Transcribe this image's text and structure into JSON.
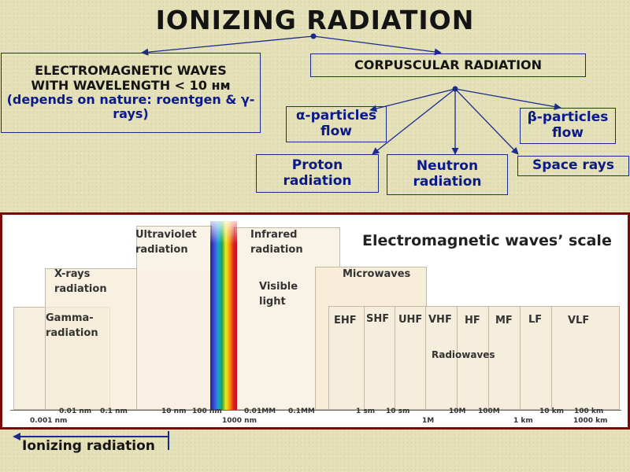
{
  "title": "IONIZING RADIATION",
  "electromagnetic": {
    "line1": "ELECTROMAGNETIC WAVES",
    "line2": "WITH WAVELENGTH < 10 нм",
    "line3": "(depends on nature: roentgen & γ-rays)"
  },
  "corpuscular": {
    "label": "CORPUSCULAR RADIATION",
    "alpha_line1": "α-particles",
    "alpha_line2": "flow",
    "beta_line1": "β-particles",
    "beta_line2": "flow",
    "proton_line1": "Proton",
    "proton_line2": "radiation",
    "neutron_line1": "Neutron",
    "neutron_line2": "radiation",
    "space": "Space rays"
  },
  "scale": {
    "title": "Electromagnetic waves’ scale",
    "gamma_1": "Gamma-",
    "gamma_2": "radiation",
    "xrays_1": "X-rays",
    "xrays_2": "radiation",
    "uv_1": "Ultraviolet",
    "uv_2": "radiation",
    "ir_1": "Infrared",
    "ir_2": "radiation",
    "visible_1": "Visible",
    "visible_2": "light",
    "microwaves": "Microwaves",
    "radiowaves": "Radiowaves",
    "bands": [
      "EHF",
      "SHF",
      "UHF",
      "VHF",
      "HF",
      "MF",
      "LF",
      "VLF"
    ],
    "ticks_top": [
      "0.01 nm",
      "0.1 nm",
      "10 nm",
      "100 nm",
      "0.01MM",
      "0.1MM",
      "1 sm",
      "10 sm",
      "10M",
      "100M",
      "10 km",
      "100 km"
    ],
    "ticks_bottom": [
      "0.001 nm",
      "1000 nm",
      "1M",
      "1 km",
      "1000 km"
    ]
  },
  "ionizing_label": "Ionizing radiation",
  "colors": {
    "title": "#141414",
    "box_text": "#0a1a8a",
    "frame": "#7a0a0a",
    "band_fill": "#f6eedd"
  }
}
